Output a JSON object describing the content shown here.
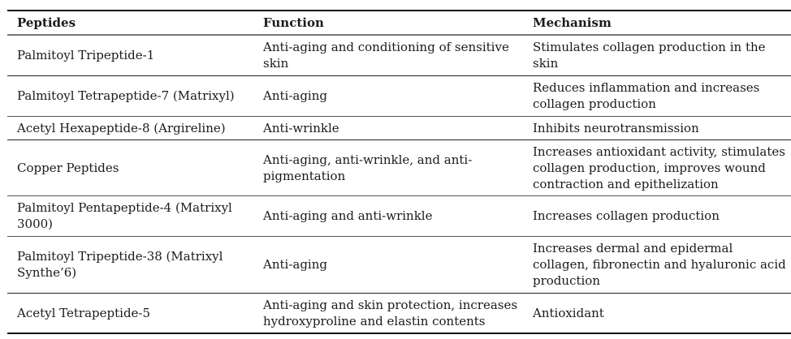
{
  "table": {
    "headers": [
      "Peptides",
      "Function",
      "Mechanism"
    ],
    "rows": [
      {
        "peptide": "Palmitoyl Tripeptide-1",
        "function": "Anti-aging and conditioning of sensitive skin",
        "mechanism": "Stimulates collagen production in the skin"
      },
      {
        "peptide": "Palmitoyl Tetrapeptide-7 (Matrixyl)",
        "function": "Anti-aging",
        "mechanism": "Reduces inflammation and increases collagen production"
      },
      {
        "peptide": "Acetyl Hexapeptide-8 (Argireline)",
        "function": "Anti-wrinkle",
        "mechanism": "Inhibits neurotransmission"
      },
      {
        "peptide": "Copper Peptides",
        "function": "Anti-aging, anti-wrinkle, and anti-pigmentation",
        "mechanism": "Increases antioxidant activity, stimulates collagen production, improves wound contraction and epithelization"
      },
      {
        "peptide": "Palmitoyl Pentapeptide-4 (Matrixyl 3000)",
        "function": "Anti-aging and anti-wrinkle",
        "mechanism": "Increases collagen production"
      },
      {
        "peptide": "Palmitoyl Tripeptide-38 (Matrixyl Synthe’6)",
        "function": "Anti-aging",
        "mechanism": "Increases dermal and epidermal collagen, fibronectin and hyaluronic acid production"
      },
      {
        "peptide": "Acetyl Tetrapeptide-5",
        "function": "Anti-aging and skin protection, increases hydroxyproline and elastin contents",
        "mechanism": "Antioxidant"
      }
    ]
  }
}
